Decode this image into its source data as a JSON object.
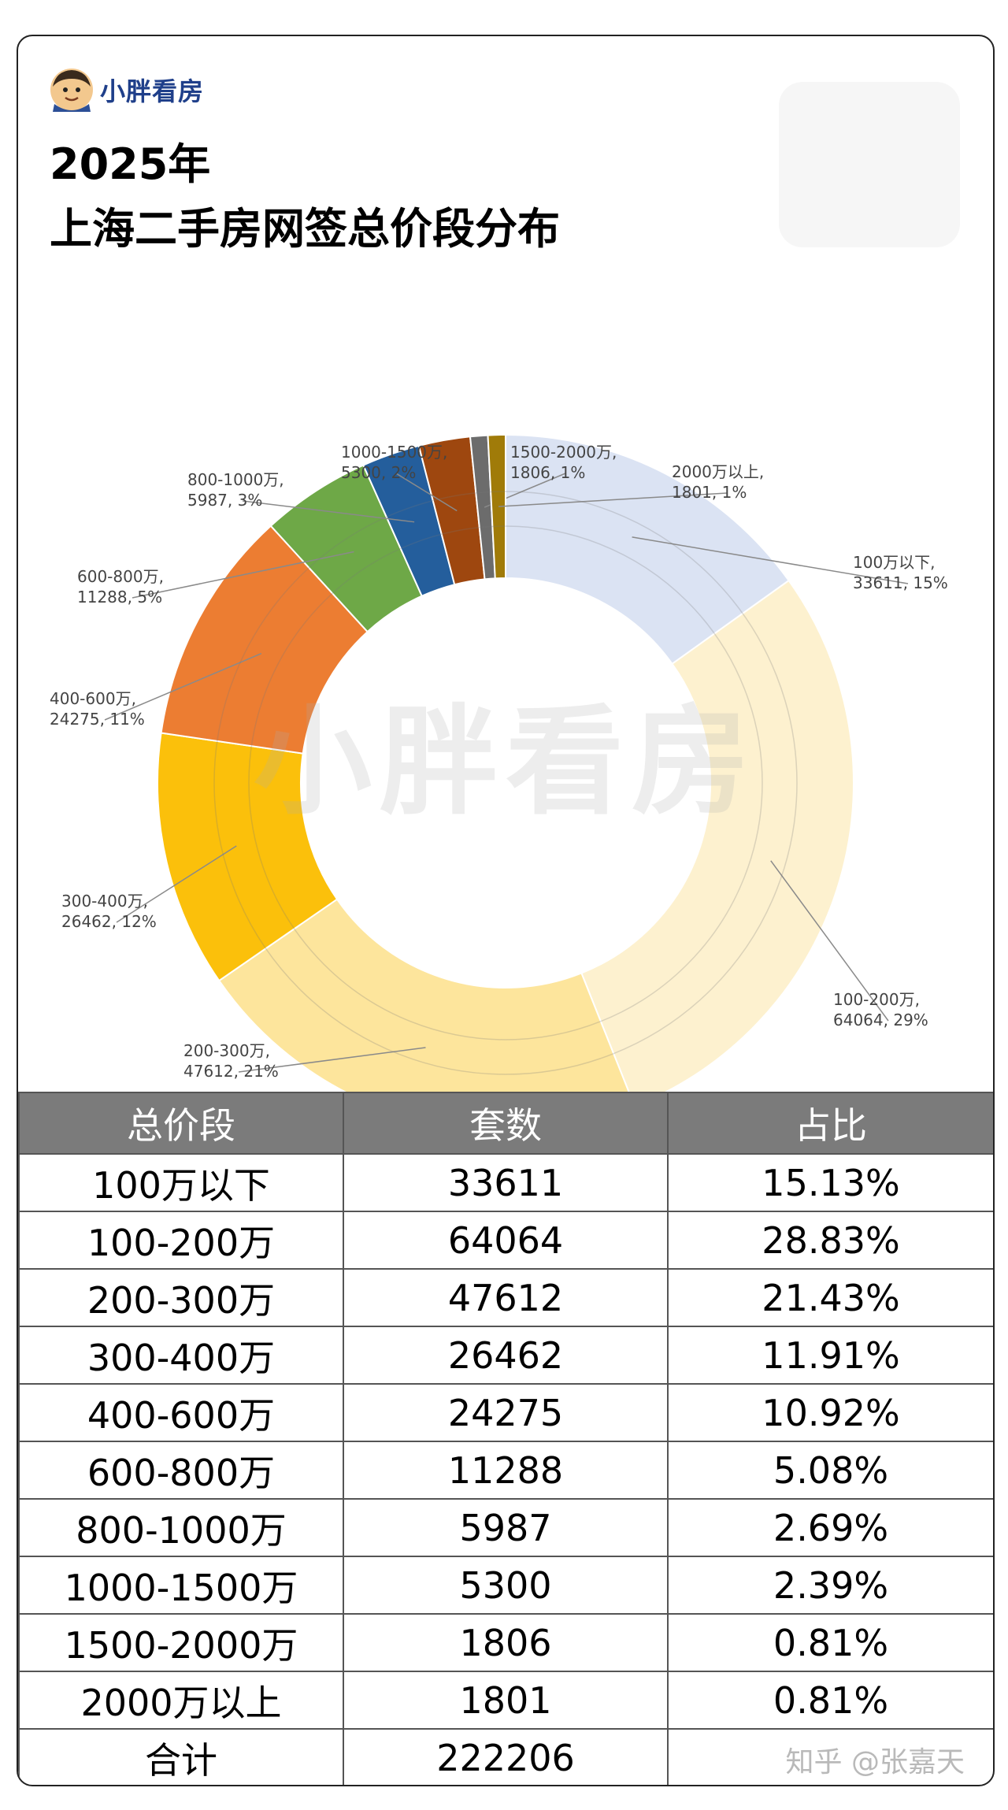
{
  "brand": {
    "name": "小胖看房"
  },
  "title": {
    "line1": "2025年",
    "line2": "上海二手房网签总价段分布"
  },
  "watermark": "小胖看房",
  "chart_data": {
    "type": "pie",
    "style": "donut",
    "categories": [
      "100万以下",
      "100-200万",
      "200-300万",
      "300-400万",
      "400-600万",
      "600-800万",
      "800-1000万",
      "1000-1500万",
      "1500-2000万",
      "2000万以上"
    ],
    "values": [
      33611,
      64064,
      47612,
      26462,
      24275,
      11288,
      5987,
      5300,
      1806,
      1801
    ],
    "percent_labels": [
      "15%",
      "29%",
      "21%",
      "12%",
      "11%",
      "5%",
      "3%",
      "2%",
      "1%",
      "1%"
    ],
    "colors": [
      "#dbe3f3",
      "#fdf1cf",
      "#fde59c",
      "#fbc00b",
      "#ec7d32",
      "#6ea847",
      "#245e9c",
      "#9e470f",
      "#6c6c6c",
      "#a07b09"
    ]
  },
  "table": {
    "headers": [
      "总价段",
      "套数",
      "占比"
    ],
    "rows": [
      [
        "100万以下",
        "33611",
        "15.13%"
      ],
      [
        "100-200万",
        "64064",
        "28.83%"
      ],
      [
        "200-300万",
        "47612",
        "21.43%"
      ],
      [
        "300-400万",
        "26462",
        "11.91%"
      ],
      [
        "400-600万",
        "24275",
        "10.92%"
      ],
      [
        "600-800万",
        "11288",
        "5.08%"
      ],
      [
        "800-1000万",
        "5987",
        "2.69%"
      ],
      [
        "1000-1500万",
        "5300",
        "2.39%"
      ],
      [
        "1500-2000万",
        "1806",
        "0.81%"
      ],
      [
        "2000万以上",
        "1801",
        "0.81%"
      ],
      [
        "合计",
        "222206",
        ""
      ]
    ]
  },
  "footer": {
    "source": "知乎 @张嘉天"
  }
}
